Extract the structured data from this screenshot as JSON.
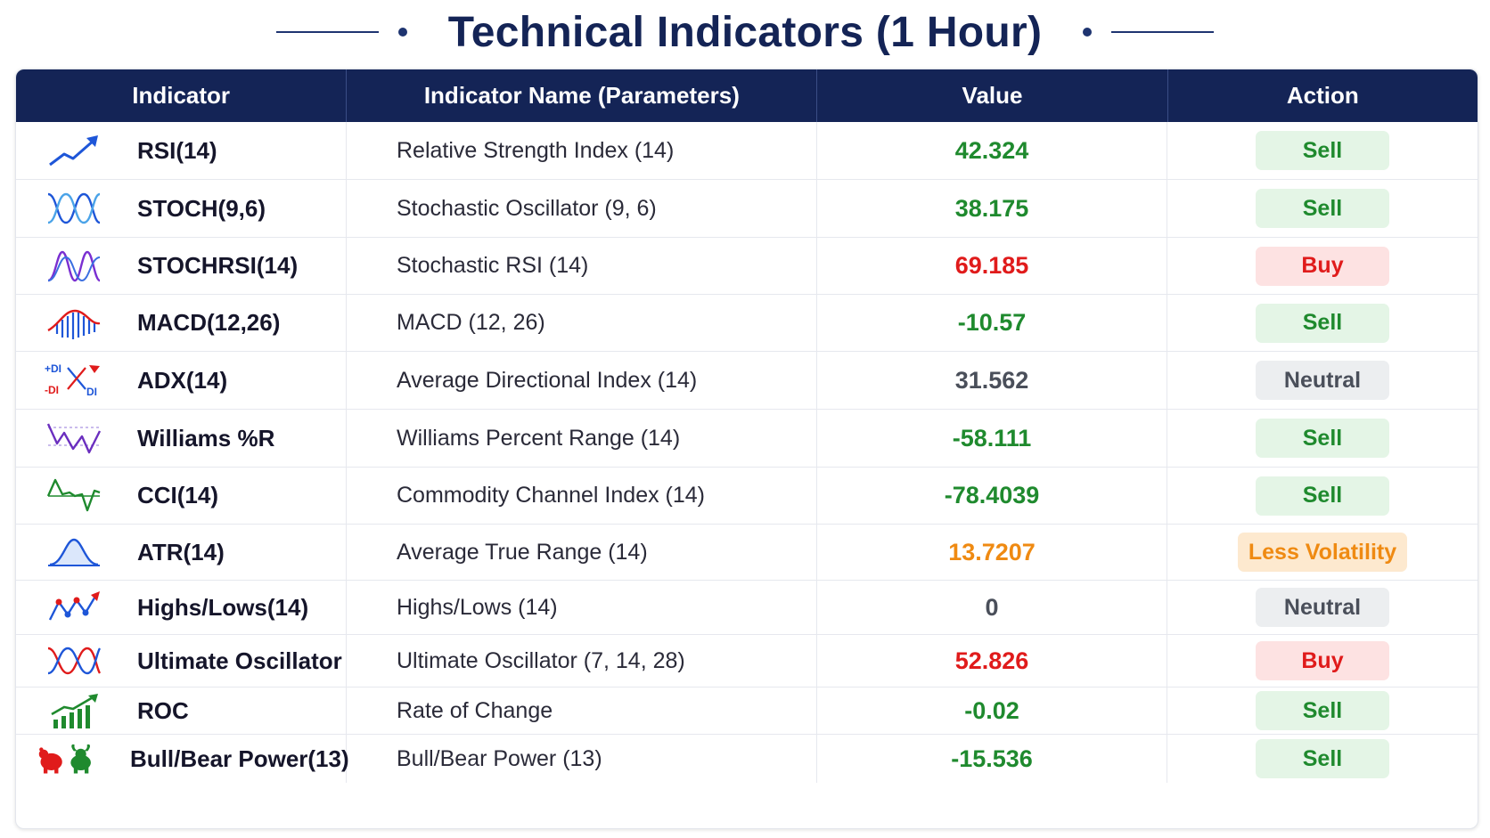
{
  "title": "Technical Indicators (1 Hour)",
  "colors": {
    "header_bg": "#142456",
    "sell_text": "#1f8a2e",
    "sell_bg": "#e4f5e6",
    "buy_text": "#e01b1b",
    "buy_bg": "#fde2e2",
    "neutral_text": "#4a4f5a",
    "neutral_bg": "#eceef0",
    "volatility_text": "#ef8a12",
    "volatility_bg": "#fde9cf"
  },
  "table": {
    "headers": {
      "indicator": "Indicator",
      "name": "Indicator Name (Parameters)",
      "value": "Value",
      "action": "Action"
    },
    "rows": [
      {
        "icon": "trend-up-arrow-icon",
        "code": "RSI(14)",
        "name": "Relative Strength Index (14)",
        "value": "42.324",
        "action": "Sell",
        "tone": "sell"
      },
      {
        "icon": "stochastic-waves-icon",
        "code": "STOCH(9,6)",
        "name": "Stochastic Oscillator (9, 6)",
        "value": "38.175",
        "action": "Sell",
        "tone": "sell"
      },
      {
        "icon": "stochrsi-waves-icon",
        "code": "STOCHRSI(14)",
        "name": "Stochastic RSI (14)",
        "value": "69.185",
        "action": "Buy",
        "tone": "buy"
      },
      {
        "icon": "macd-histogram-icon",
        "code": "MACD(12,26)",
        "name": "MACD (12, 26)",
        "value": "-10.57",
        "action": "Sell",
        "tone": "sell"
      },
      {
        "icon": "adx-di-cross-icon",
        "code": "ADX(14)",
        "name": "Average Directional Index (14)",
        "value": "31.562",
        "action": "Neutral",
        "tone": "neutral",
        "icon_labels": [
          "+DI",
          "-DI",
          "DI"
        ]
      },
      {
        "icon": "williams-zigzag-icon",
        "code": "Williams %R",
        "name": "Williams Percent Range (14)",
        "value": "-58.111",
        "action": "Sell",
        "tone": "sell"
      },
      {
        "icon": "cci-wave-icon",
        "code": "CCI(14)",
        "name": "Commodity Channel Index (14)",
        "value": "-78.4039",
        "action": "Sell",
        "tone": "sell"
      },
      {
        "icon": "atr-bell-curve-icon",
        "code": "ATR(14)",
        "name": "Average True Range (14)",
        "value": "13.7207",
        "action": "Less Volatility",
        "tone": "volatility"
      },
      {
        "icon": "highs-lows-line-icon",
        "code": "Highs/Lows(14)",
        "name": "Highs/Lows (14)",
        "value": "0",
        "action": "Neutral",
        "tone": "neutral"
      },
      {
        "icon": "ultimate-oscillator-waves-icon",
        "code": "Ultimate Oscillator",
        "name": "Ultimate Oscillator (7, 14, 28)",
        "value": "52.826",
        "action": "Buy",
        "tone": "buy"
      },
      {
        "icon": "roc-bars-arrow-icon",
        "code": "ROC",
        "name": "Rate of Change",
        "value": "-0.02",
        "action": "Sell",
        "tone": "sell"
      },
      {
        "icon": "bull-bear-icon",
        "code": "Bull/Bear Power(13)",
        "name": "Bull/Bear Power (13)",
        "value": "-15.536",
        "action": "Sell",
        "tone": "sell"
      }
    ]
  }
}
